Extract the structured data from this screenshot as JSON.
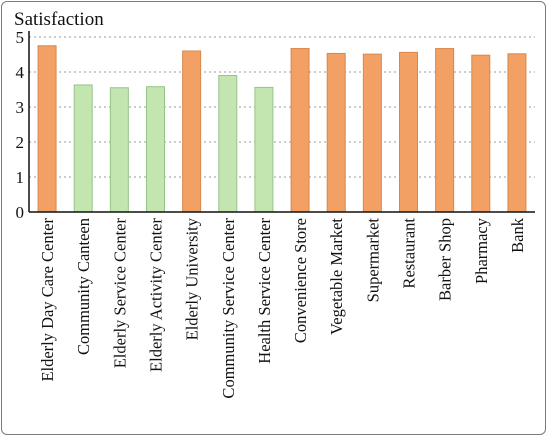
{
  "chart_data": {
    "type": "bar",
    "ylabel": "Satisfaction",
    "xlabel": "",
    "ylim": [
      0,
      5
    ],
    "yticks": [
      0,
      1,
      2,
      3,
      4,
      5
    ],
    "grid": true,
    "categories": [
      "Elderly Day Care Center",
      "Community Canteen",
      "Elderly Service Center",
      "Elderly Activity Center",
      "Elderly University",
      "Community Service Center",
      "Health Service Center",
      "Convenience Store",
      "Vegetable Market",
      "Supermarket",
      "Restaurant",
      "Barber Shop",
      "Pharmacy",
      "Bank"
    ],
    "values": [
      4.75,
      3.63,
      3.55,
      3.58,
      4.6,
      3.9,
      3.56,
      4.67,
      4.53,
      4.51,
      4.56,
      4.67,
      4.48,
      4.52
    ],
    "bar_groups": [
      "orange",
      "green",
      "green",
      "green",
      "orange",
      "green",
      "green",
      "orange",
      "orange",
      "orange",
      "orange",
      "orange",
      "orange",
      "orange"
    ],
    "colors": {
      "orange_fill": "#f2a064",
      "orange_stroke": "#d9884c",
      "green_fill": "#c3e5b0",
      "green_stroke": "#98c487"
    }
  }
}
